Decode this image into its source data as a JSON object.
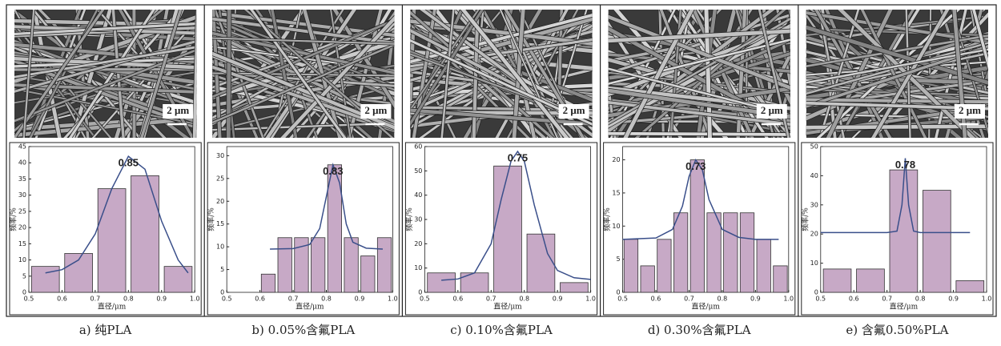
{
  "chart_data": [
    {
      "type": "histogram",
      "caption": "a) 纯PLA",
      "scale_label": "2 μm",
      "xlabel": "直径/μm",
      "ylabel": "频率/%",
      "annotation": "0.85",
      "bins": [
        0.5,
        0.6,
        0.7,
        0.8,
        0.9,
        1.0
      ],
      "values": [
        8,
        12,
        32,
        36,
        8
      ],
      "color": "#c7a9c6",
      "fit": {
        "x": [
          0.55,
          0.6,
          0.65,
          0.7,
          0.75,
          0.8,
          0.85,
          0.9,
          0.95,
          0.98
        ],
        "y": [
          6,
          7,
          10,
          18,
          32,
          42,
          38,
          22,
          10,
          6
        ],
        "color": "#3a4f8a"
      },
      "xlim": [
        0.5,
        1.0
      ],
      "ylim": [
        0,
        45
      ],
      "xticks": [
        0.5,
        0.6,
        0.7,
        0.8,
        0.9,
        {
          "value": 1.0,
          "label": "1.0"
        }
      ],
      "yticks": [
        0,
        5,
        10,
        15,
        20,
        25,
        30,
        35,
        40,
        45
      ]
    },
    {
      "type": "histogram",
      "caption": "b) 0.05%含氟PLA",
      "scale_label": "2 μm",
      "xlabel": "直径/μm",
      "ylabel": "频率/%",
      "annotation": "0.83",
      "bins": [
        0.6,
        0.65,
        0.7,
        0.75,
        0.8,
        0.85,
        0.9,
        0.95,
        1.0
      ],
      "values": [
        4,
        12,
        12,
        12,
        28,
        12,
        8,
        12
      ],
      "color": "#c7a9c6",
      "fit": {
        "x": [
          0.63,
          0.7,
          0.75,
          0.78,
          0.8,
          0.82,
          0.84,
          0.86,
          0.88,
          0.92,
          0.97
        ],
        "y": [
          9.5,
          9.6,
          10.5,
          14,
          21,
          28,
          24,
          15,
          11,
          9.7,
          9.5
        ],
        "color": "#3a4f8a"
      },
      "xlim": [
        0.5,
        1.0
      ],
      "ylim": [
        0,
        32
      ],
      "xticks": [
        0.5,
        0.6,
        0.7,
        0.8,
        0.9,
        {
          "value": 1.0,
          "label": "1.0"
        }
      ],
      "yticks": [
        0,
        5,
        10,
        15,
        20,
        25,
        30
      ]
    },
    {
      "type": "histogram",
      "caption": "c) 0.10%含氟PLA",
      "scale_label": "2 μm",
      "xlabel": "直径/μm",
      "ylabel": "频率/%",
      "annotation": "0.75",
      "bins": [
        0.5,
        0.6,
        0.7,
        0.8,
        0.9,
        1.0
      ],
      "values": [
        8,
        8,
        52,
        24,
        4
      ],
      "color": "#c7a9c6",
      "fit": {
        "x": [
          0.55,
          0.6,
          0.65,
          0.7,
          0.73,
          0.76,
          0.78,
          0.8,
          0.83,
          0.87,
          0.9,
          0.95,
          1.0
        ],
        "y": [
          5,
          5.5,
          8,
          20,
          38,
          54,
          58,
          54,
          36,
          16,
          9,
          6,
          5.3
        ],
        "color": "#3a4f8a"
      },
      "xlim": [
        0.5,
        1.0
      ],
      "ylim": [
        0,
        60
      ],
      "xticks": [
        0.5,
        0.6,
        0.7,
        0.8,
        0.9,
        {
          "value": 1.0,
          "label": "1.0"
        }
      ],
      "yticks": [
        0,
        10,
        20,
        30,
        40,
        50,
        60
      ]
    },
    {
      "type": "histogram",
      "caption": "d) 0.30%含氟PLA",
      "scale_label": "2 μm",
      "xlabel": "直径/μm",
      "ylabel": "频率/%",
      "annotation": "0.73",
      "bins": [
        0.5,
        0.55,
        0.6,
        0.65,
        0.7,
        0.75,
        0.8,
        0.85,
        0.9,
        0.95,
        1.0
      ],
      "values": [
        8,
        4,
        8,
        12,
        20,
        12,
        12,
        12,
        8,
        4
      ],
      "color": "#c7a9c6",
      "fit": {
        "x": [
          0.5,
          0.6,
          0.65,
          0.68,
          0.7,
          0.72,
          0.74,
          0.76,
          0.8,
          0.85,
          0.9,
          0.97
        ],
        "y": [
          8,
          8.2,
          9.5,
          13,
          17.5,
          20,
          18.5,
          14,
          9.5,
          8.3,
          8,
          8
        ],
        "color": "#3a4f8a"
      },
      "xlim": [
        0.5,
        1.0
      ],
      "ylim": [
        0,
        22
      ],
      "xticks": [
        0.5,
        0.6,
        0.7,
        0.8,
        0.9,
        {
          "value": 1.0,
          "label": "1.0"
        }
      ],
      "yticks": [
        0,
        5,
        10,
        15,
        20
      ]
    },
    {
      "type": "histogram",
      "caption": "e) 含氟0.50%PLA",
      "scale_label": "2 μm",
      "xlabel": "直径/μm",
      "ylabel": "频率/%",
      "annotation": "0.78",
      "bins": [
        0.5,
        0.6,
        0.7,
        0.8,
        0.9,
        1.0
      ],
      "values": [
        8,
        8,
        42,
        35,
        4
      ],
      "color": "#c7a9c6",
      "fit": {
        "x": [
          0.5,
          0.7,
          0.73,
          0.745,
          0.755,
          0.765,
          0.78,
          0.8,
          0.95
        ],
        "y": [
          20.5,
          20.5,
          21,
          30,
          46,
          30,
          21,
          20.5,
          20.5
        ],
        "color": "#3a4f8a"
      },
      "xlim": [
        0.5,
        1.0
      ],
      "ylim": [
        0,
        50
      ],
      "xticks": [
        0.5,
        0.6,
        0.7,
        0.8,
        0.9,
        {
          "value": 1.0,
          "label": "1.0"
        }
      ],
      "yticks": [
        0,
        10,
        20,
        30,
        40,
        50
      ]
    }
  ]
}
